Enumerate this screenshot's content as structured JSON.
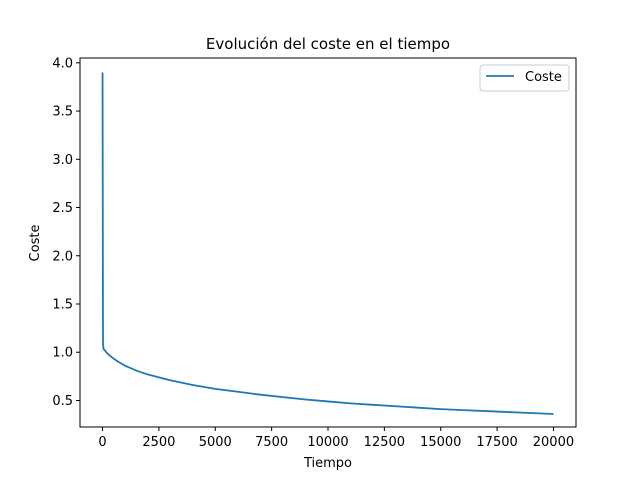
{
  "chart_data": {
    "type": "line",
    "title": "Evolución del coste en el tiempo",
    "xlabel": "Tiempo",
    "ylabel": "Coste",
    "xlim": [
      -1000,
      21000
    ],
    "ylim": [
      0.225,
      4.05
    ],
    "xticks": [
      0,
      2500,
      5000,
      7500,
      10000,
      12500,
      15000,
      17500,
      20000
    ],
    "yticks": [
      0.5,
      1.0,
      1.5,
      2.0,
      2.5,
      3.0,
      3.5,
      4.0
    ],
    "xtick_labels": [
      "0",
      "2500",
      "5000",
      "7500",
      "10000",
      "12500",
      "15000",
      "17500",
      "20000"
    ],
    "ytick_labels": [
      "0.5",
      "1.0",
      "1.5",
      "2.0",
      "2.5",
      "3.0",
      "3.5",
      "4.0"
    ],
    "grid": false,
    "legend_position": "top-right",
    "series": [
      {
        "name": "Coste",
        "color": "#1f77b4",
        "x": [
          0,
          20,
          50,
          100,
          200,
          400,
          700,
          1000,
          1500,
          2000,
          2500,
          3000,
          4000,
          5000,
          6000,
          7000,
          8000,
          9000,
          10000,
          11000,
          12000,
          13000,
          14000,
          15000,
          16000,
          17000,
          18000,
          19000,
          20000
        ],
        "y": [
          3.9,
          1.08,
          1.03,
          1.02,
          0.99,
          0.95,
          0.9,
          0.86,
          0.81,
          0.77,
          0.74,
          0.71,
          0.66,
          0.62,
          0.59,
          0.56,
          0.535,
          0.51,
          0.49,
          0.47,
          0.455,
          0.44,
          0.425,
          0.41,
          0.4,
          0.39,
          0.38,
          0.37,
          0.36
        ]
      }
    ]
  }
}
